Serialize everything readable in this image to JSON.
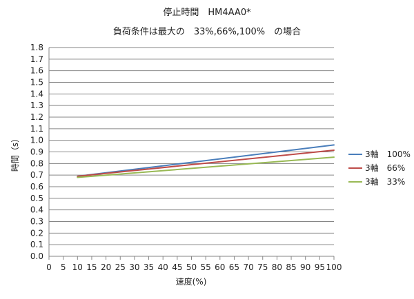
{
  "chart_data": {
    "type": "line",
    "title": "停止時間　HM4AA0*",
    "subtitle": "負荷条件は最大の　33%,66%,100%　の場合",
    "xlabel": "速度(%)",
    "ylabel": "時間（s）",
    "xlim": [
      0,
      100
    ],
    "ylim": [
      0,
      1.8
    ],
    "x_ticks": [
      "0",
      "5",
      "10",
      "15",
      "20",
      "25",
      "30",
      "35",
      "40",
      "45",
      "50",
      "55",
      "60",
      "65",
      "70",
      "75",
      "80",
      "85",
      "90",
      "95",
      "100"
    ],
    "y_ticks": [
      "0.0",
      "0.1",
      "0.2",
      "0.3",
      "0.4",
      "0.5",
      "0.6",
      "0.7",
      "0.8",
      "0.9",
      "1.0",
      "1.1",
      "1.2",
      "1.3",
      "1.4",
      "1.5",
      "1.6",
      "1.7",
      "1.8"
    ],
    "grid": "horizontal",
    "legend_position": "right",
    "x": [
      10,
      100
    ],
    "series": [
      {
        "name": "3軸　100%",
        "color": "#4a7ebb",
        "values": [
          0.69,
          0.96
        ]
      },
      {
        "name": "3軸　66%",
        "color": "#be4b48",
        "values": [
          0.69,
          0.915
        ]
      },
      {
        "name": "3軸　33%",
        "color": "#98b954",
        "values": [
          0.68,
          0.855
        ]
      }
    ]
  }
}
